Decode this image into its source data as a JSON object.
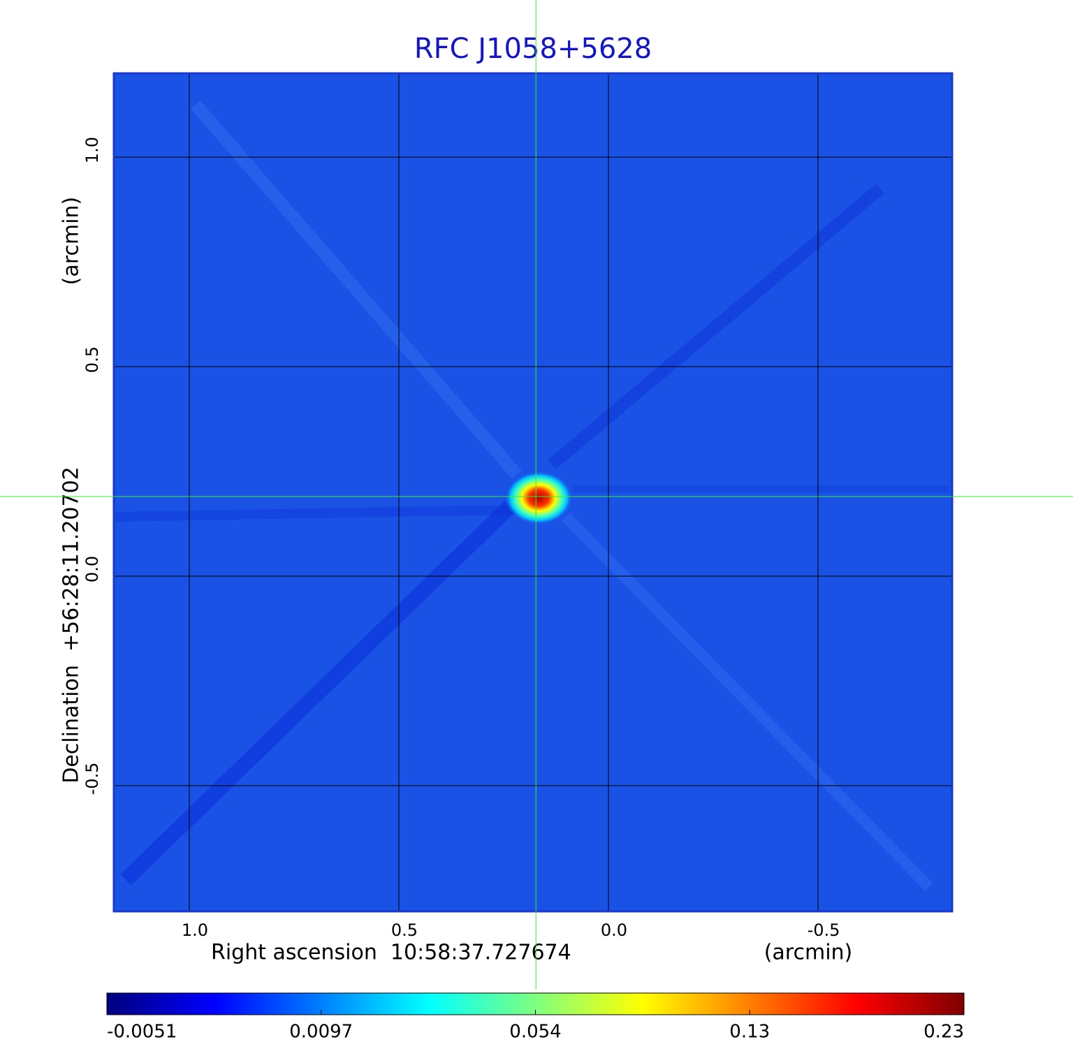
{
  "chart_data": {
    "type": "image",
    "title": "RFC J1058+5628",
    "xlabel": "Right ascension  10:58:37.727674",
    "xunit": "(arcmin)",
    "ylabel": "Declination  +56:28:11.20702",
    "yunit": "(arcmin)",
    "xlim": [
      1.18,
      -0.82
    ],
    "ylim": [
      -0.8,
      1.2
    ],
    "xticks": [
      {
        "value": 1,
        "label": "1.0"
      },
      0.5,
      {
        "value": 0,
        "label": "0.0"
      },
      -0.5
    ],
    "yticks": [
      {
        "value": 1,
        "label": "1.0"
      },
      0.5,
      {
        "value": 0,
        "label": "0.0"
      },
      -0.5
    ],
    "grid": true,
    "background": "#1b52e6",
    "crosshair": {
      "x": 0.173,
      "y": 0.19,
      "color": "#33ee33"
    },
    "colorbar": {
      "ticks": [
        -0.0051,
        0.0097,
        0.054,
        0.13,
        0.23
      ],
      "colormap": [
        "#00007f",
        "#0000ff",
        "#007fff",
        "#00ffff",
        "#7fff7f",
        "#ffff00",
        "#ff7f00",
        "#ff0000",
        "#7f0000"
      ]
    }
  }
}
